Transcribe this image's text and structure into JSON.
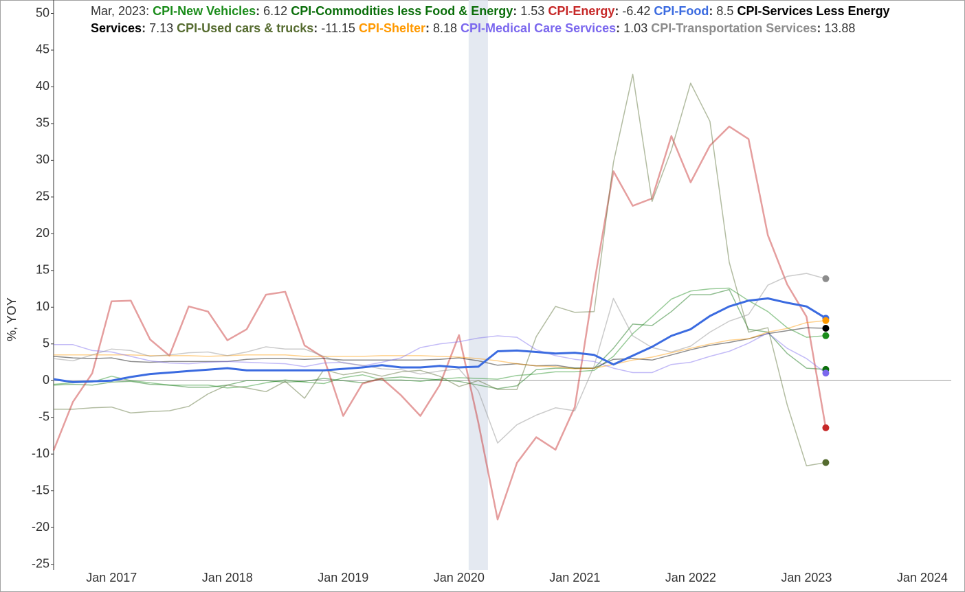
{
  "chart_data": {
    "type": "line",
    "header_date": "Mar, 2023",
    "y_label": "%, YOY",
    "x": [
      "2016-07",
      "2016-09",
      "2016-11",
      "2017-01",
      "2017-03",
      "2017-05",
      "2017-07",
      "2017-09",
      "2017-11",
      "2018-01",
      "2018-03",
      "2018-05",
      "2018-07",
      "2018-09",
      "2018-11",
      "2019-01",
      "2019-03",
      "2019-05",
      "2019-07",
      "2019-09",
      "2019-11",
      "2020-01",
      "2020-03",
      "2020-05",
      "2020-07",
      "2020-09",
      "2020-11",
      "2021-01",
      "2021-03",
      "2021-05",
      "2021-07",
      "2021-09",
      "2021-11",
      "2022-01",
      "2022-03",
      "2022-05",
      "2022-07",
      "2022-09",
      "2022-11",
      "2023-01",
      "2023-03"
    ],
    "xlim": [
      "2016-07",
      "2024-04"
    ],
    "xticks": [
      {
        "value": "2017-01",
        "label": "Jan 2017"
      },
      {
        "value": "2018-01",
        "label": "Jan 2018"
      },
      {
        "value": "2019-01",
        "label": "Jan 2019"
      },
      {
        "value": "2020-01",
        "label": "Jan 2020"
      },
      {
        "value": "2021-01",
        "label": "Jan 2021"
      },
      {
        "value": "2022-01",
        "label": "Jan 2022"
      },
      {
        "value": "2023-01",
        "label": "Jan 2023"
      },
      {
        "value": "2024-01",
        "label": "Jan 2024"
      }
    ],
    "ylim": [
      -25,
      50
    ],
    "yticks": [
      -25,
      -20,
      -15,
      -10,
      -5,
      0,
      5,
      10,
      15,
      20,
      25,
      30,
      35,
      40,
      45,
      50
    ],
    "recession": [
      "2020-02",
      "2020-04"
    ],
    "series": [
      {
        "name": "CPI-New Vehicles",
        "color": "#1a8c1a",
        "values": [
          -0.5,
          -0.3,
          -0.2,
          0.6,
          0.0,
          -0.3,
          -0.6,
          -0.6,
          -0.6,
          -1.0,
          -0.8,
          -0.3,
          0.1,
          -0.2,
          -0.4,
          0.4,
          0.8,
          0.1,
          0.1,
          -0.1,
          0.2,
          0.4,
          0.3,
          0.2,
          0.7,
          0.9,
          1.2,
          1.2,
          1.4,
          3.3,
          6.4,
          8.7,
          11.1,
          12.2,
          12.5,
          12.6,
          10.9,
          9.4,
          7.2,
          5.9,
          6.12
        ]
      },
      {
        "name": "CPI-Commodities less Food & Energy",
        "color": "#0a6e0a",
        "values": [
          -0.6,
          -0.5,
          -0.6,
          -0.2,
          -0.1,
          -0.5,
          -0.6,
          -0.9,
          -0.9,
          -0.6,
          0.0,
          0.0,
          -0.2,
          -0.1,
          0.3,
          0.0,
          -0.3,
          0.3,
          0.5,
          0.3,
          0.1,
          -0.1,
          -0.6,
          -1.1,
          -0.7,
          1.5,
          1.7,
          1.7,
          1.7,
          4.4,
          7.7,
          7.5,
          9.4,
          11.7,
          11.7,
          12.4,
          7.0,
          6.6,
          3.7,
          1.7,
          1.53
        ]
      },
      {
        "name": "CPI-Energy",
        "color": "#c62828",
        "values": [
          -9.5,
          -2.9,
          1.0,
          10.8,
          10.9,
          5.6,
          3.4,
          10.1,
          9.4,
          5.5,
          7.0,
          11.7,
          12.1,
          4.8,
          3.1,
          -4.8,
          -0.4,
          0.3,
          -2.0,
          -4.8,
          -0.6,
          6.2,
          -5.7,
          -18.9,
          -11.2,
          -7.7,
          -9.4,
          -3.6,
          13.2,
          28.5,
          23.8,
          24.8,
          33.3,
          27.0,
          32.0,
          34.6,
          32.9,
          19.8,
          13.1,
          8.7,
          -6.42
        ]
      },
      {
        "name": "CPI-Food",
        "color": "#3b6be0",
        "bold": true,
        "values": [
          0.2,
          -0.2,
          -0.1,
          0.0,
          0.5,
          0.9,
          1.1,
          1.3,
          1.5,
          1.7,
          1.4,
          1.4,
          1.4,
          1.4,
          1.4,
          1.6,
          1.8,
          2.1,
          1.8,
          1.8,
          2.0,
          1.8,
          1.9,
          4.0,
          4.1,
          3.9,
          3.7,
          3.8,
          3.5,
          2.2,
          3.4,
          4.6,
          6.1,
          7.0,
          8.8,
          10.1,
          10.9,
          11.2,
          10.6,
          10.1,
          8.5
        ]
      },
      {
        "name": "CPI-Services Less Energy Services",
        "color": "#000000",
        "values": [
          3.3,
          3.1,
          3.0,
          3.1,
          2.6,
          2.5,
          2.6,
          2.6,
          2.6,
          2.6,
          2.9,
          3.0,
          3.0,
          2.9,
          3.0,
          2.8,
          2.8,
          2.8,
          2.8,
          2.8,
          2.9,
          3.1,
          2.7,
          2.1,
          2.3,
          2.0,
          2.1,
          1.7,
          1.7,
          2.9,
          3.0,
          2.8,
          3.5,
          4.2,
          4.8,
          5.2,
          5.7,
          6.4,
          6.8,
          7.2,
          7.13
        ]
      },
      {
        "name": "CPI-Used cars & trucks",
        "color": "#556b2f",
        "values": [
          -3.9,
          -3.9,
          -3.7,
          -3.6,
          -4.4,
          -4.2,
          -4.1,
          -3.5,
          -1.8,
          -0.6,
          -1.0,
          -1.5,
          -0.1,
          -2.4,
          1.5,
          0.8,
          1.2,
          0.6,
          1.2,
          1.4,
          0.6,
          -0.8,
          0.0,
          -1.2,
          -1.2,
          6.0,
          10.1,
          9.3,
          9.4,
          29.7,
          41.7,
          24.4,
          31.4,
          40.5,
          35.3,
          16.1,
          6.6,
          7.2,
          -3.3,
          -11.6,
          -11.15
        ]
      },
      {
        "name": "CPI-Shelter",
        "color": "#ff9900",
        "values": [
          3.5,
          3.5,
          3.5,
          3.5,
          3.5,
          3.4,
          3.4,
          3.4,
          3.3,
          3.4,
          3.5,
          3.5,
          3.5,
          3.3,
          3.3,
          3.3,
          3.3,
          3.4,
          3.4,
          3.4,
          3.3,
          3.2,
          3.0,
          2.7,
          2.3,
          2.0,
          1.9,
          1.6,
          1.7,
          2.2,
          2.8,
          3.2,
          3.8,
          4.4,
          5.0,
          5.5,
          5.7,
          6.6,
          7.1,
          7.9,
          8.18
        ]
      },
      {
        "name": "CPI-Medical Care Services",
        "color": "#7b68ee",
        "values": [
          4.9,
          4.9,
          4.1,
          3.9,
          3.3,
          2.7,
          2.4,
          2.3,
          2.5,
          2.6,
          2.5,
          2.4,
          2.3,
          1.9,
          2.4,
          2.5,
          2.0,
          2.5,
          3.1,
          4.5,
          5.0,
          5.3,
          5.8,
          6.1,
          5.9,
          4.2,
          3.4,
          2.9,
          2.6,
          1.7,
          1.1,
          1.1,
          2.2,
          2.5,
          3.3,
          4.0,
          5.1,
          6.5,
          4.4,
          3.0,
          1.03
        ]
      },
      {
        "name": "CPI-Transportation Services",
        "color": "#8c8c8c",
        "values": [
          3.0,
          2.7,
          3.5,
          4.3,
          4.1,
          3.3,
          3.5,
          3.8,
          3.9,
          3.4,
          3.9,
          4.6,
          4.3,
          4.3,
          3.3,
          2.4,
          2.1,
          1.6,
          1.5,
          0.9,
          1.3,
          1.6,
          -1.4,
          -8.5,
          -6.0,
          -4.7,
          -3.7,
          -4.1,
          2.0,
          11.2,
          6.1,
          4.5,
          3.9,
          4.7,
          6.6,
          8.1,
          9.0,
          13.0,
          14.2,
          14.6,
          13.88
        ]
      }
    ]
  }
}
